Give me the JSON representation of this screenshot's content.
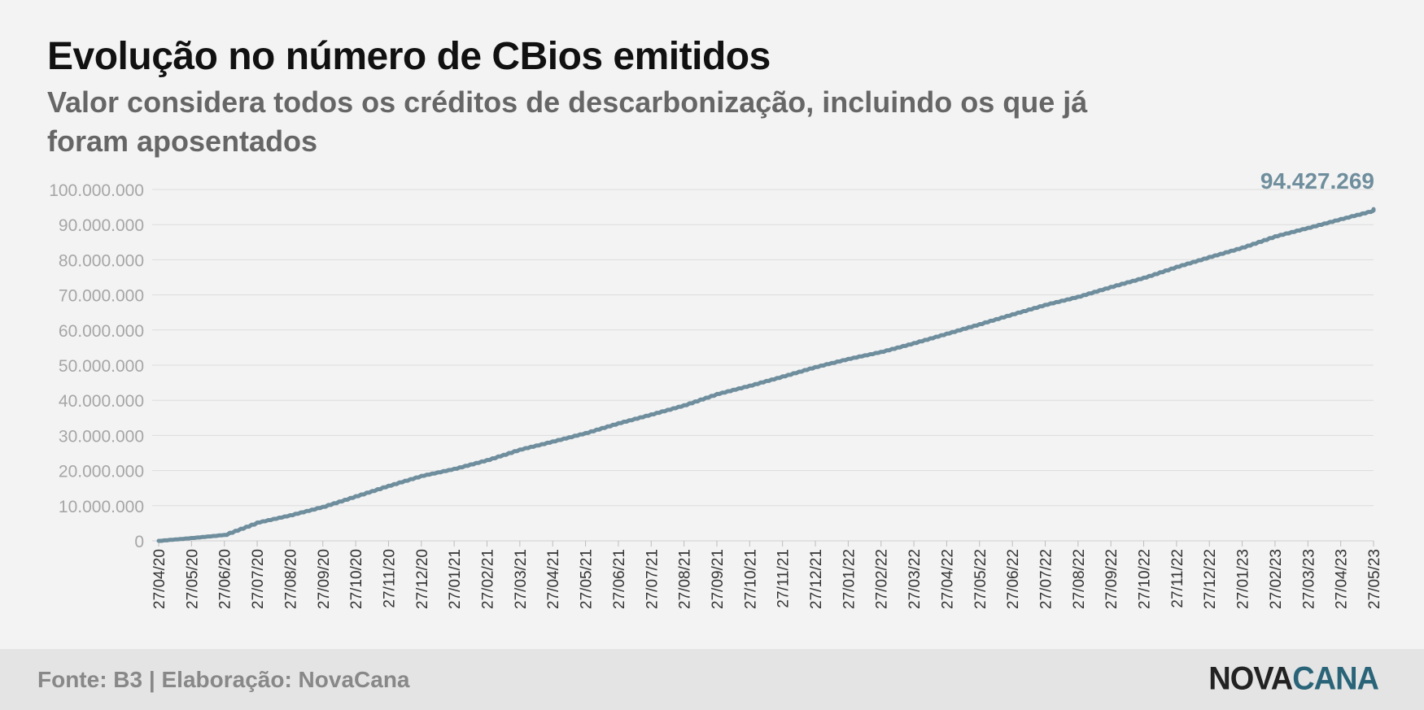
{
  "header": {
    "title": "Evolução no número de CBios emitidos",
    "subtitle": "Valor considera todos os créditos de descarbonização, incluindo os que já foram aposentados"
  },
  "footer": {
    "source": "Fonte: B3 | Elaboração: NovaCana",
    "logo_part1": "NOVA",
    "logo_part2": "CANA"
  },
  "colors": {
    "line": "#6f8e9d",
    "last_label": "#6f8e9d",
    "grid": "#dcdcdc",
    "tick_text": "#a6a6a6",
    "axis_text": "#333333"
  },
  "chart_data": {
    "type": "line",
    "grid": true,
    "ylim": [
      0,
      100000000
    ],
    "y_ticks": [
      0,
      10000000,
      20000000,
      30000000,
      40000000,
      50000000,
      60000000,
      70000000,
      80000000,
      90000000,
      100000000
    ],
    "y_tick_labels": [
      "0",
      "10.000.000",
      "20.000.000",
      "30.000.000",
      "40.000.000",
      "50.000.000",
      "60.000.000",
      "70.000.000",
      "80.000.000",
      "90.000.000",
      "100.000.000"
    ],
    "x_tick_labels": [
      "27/04/20",
      "27/05/20",
      "27/06/20",
      "27/07/20",
      "27/08/20",
      "27/09/20",
      "27/10/20",
      "27/11/20",
      "27/12/20",
      "27/01/21",
      "27/02/21",
      "27/03/21",
      "27/04/21",
      "27/05/21",
      "27/06/21",
      "27/07/21",
      "27/08/21",
      "27/09/21",
      "27/10/21",
      "27/11/21",
      "27/12/21",
      "27/01/22",
      "27/02/22",
      "27/03/22",
      "27/04/22",
      "27/05/22",
      "27/06/22",
      "27/07/22",
      "27/08/22",
      "27/09/22",
      "27/10/22",
      "27/11/22",
      "27/12/22",
      "27/01/23",
      "27/02/23",
      "27/03/23",
      "27/04/23",
      "27/05/23"
    ],
    "x": [
      "27/04/20",
      "27/05/20",
      "27/06/20",
      "27/07/20",
      "27/08/20",
      "27/09/20",
      "27/10/20",
      "27/11/20",
      "27/12/20",
      "27/01/21",
      "27/02/21",
      "27/03/21",
      "27/04/21",
      "27/05/21",
      "27/06/21",
      "27/07/21",
      "27/08/21",
      "27/09/21",
      "27/10/21",
      "27/11/21",
      "27/12/21",
      "27/01/22",
      "27/02/22",
      "27/03/22",
      "27/04/22",
      "27/05/22",
      "27/06/22",
      "27/07/22",
      "27/08/22",
      "27/09/22",
      "27/10/22",
      "27/11/22",
      "27/12/22",
      "27/01/23",
      "27/02/23",
      "27/03/23",
      "27/04/23",
      "27/05/23"
    ],
    "values": [
      0,
      800000,
      1700000,
      5200000,
      7300000,
      9700000,
      12700000,
      15700000,
      18500000,
      20500000,
      23000000,
      26000000,
      28300000,
      30700000,
      33500000,
      36000000,
      38600000,
      41800000,
      44200000,
      46800000,
      49500000,
      51800000,
      53800000,
      56300000,
      59000000,
      61700000,
      64500000,
      67200000,
      69500000,
      72300000,
      74900000,
      78000000,
      80800000,
      83500000,
      86700000,
      89100000,
      91600000,
      94000000
    ],
    "last_value": 94427269,
    "last_value_label": "94.427.269"
  }
}
